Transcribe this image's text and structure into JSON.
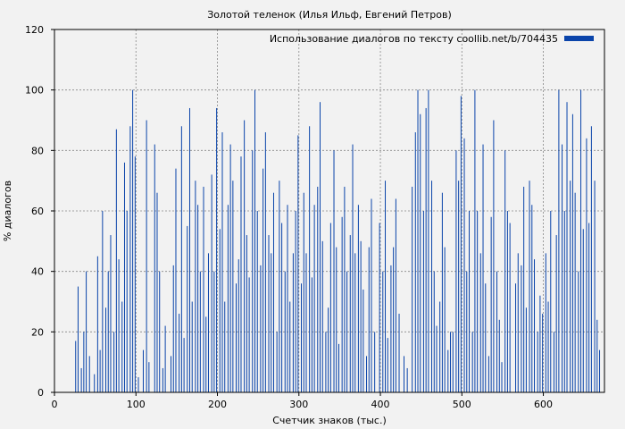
{
  "chart_data": {
    "type": "bar",
    "title": "Золотой теленок (Илья Ильф, Евгений Петров)",
    "xlabel": "Счетчик знаков (тыс.)",
    "ylabel": "% диалогов",
    "legend_label": "Использование диалогов по тексту coollib.net/b/704435",
    "legend_position": "top-right",
    "grid": true,
    "xlim": [
      0,
      675
    ],
    "ylim": [
      0,
      120
    ],
    "x_ticks": [
      0,
      100,
      200,
      300,
      400,
      500,
      600
    ],
    "y_ticks": [
      0,
      20,
      40,
      60,
      80,
      100,
      120
    ],
    "bar_color": "#0a44aa",
    "bar_width": 1,
    "x": [
      26,
      29,
      33,
      36,
      39,
      43,
      46,
      49,
      53,
      56,
      59,
      63,
      66,
      69,
      73,
      76,
      79,
      83,
      86,
      89,
      93,
      96,
      99,
      103,
      106,
      109,
      113,
      116,
      119,
      123,
      126,
      129,
      133,
      136,
      139,
      143,
      146,
      149,
      153,
      156,
      159,
      163,
      166,
      169,
      173,
      176,
      179,
      183,
      186,
      189,
      193,
      196,
      199,
      203,
      206,
      209,
      213,
      216,
      219,
      223,
      226,
      229,
      233,
      236,
      239,
      243,
      246,
      249,
      253,
      256,
      259,
      263,
      266,
      269,
      273,
      276,
      279,
      283,
      286,
      289,
      293,
      296,
      299,
      303,
      306,
      309,
      313,
      316,
      319,
      323,
      326,
      329,
      333,
      336,
      339,
      343,
      346,
      349,
      353,
      356,
      359,
      363,
      366,
      369,
      373,
      376,
      379,
      383,
      386,
      389,
      393,
      396,
      399,
      403,
      406,
      409,
      413,
      416,
      419,
      423,
      426,
      429,
      433,
      436,
      439,
      443,
      446,
      449,
      453,
      456,
      459,
      463,
      466,
      469,
      473,
      476,
      479,
      483,
      486,
      489,
      493,
      496,
      499,
      503,
      506,
      509,
      513,
      516,
      519,
      523,
      526,
      529,
      533,
      536,
      539,
      543,
      546,
      549,
      553,
      556,
      559,
      563,
      566,
      569,
      573,
      576,
      579,
      583,
      586,
      589,
      593,
      596,
      599,
      603,
      606,
      609,
      613,
      616,
      619,
      623,
      626,
      629,
      633,
      636,
      639,
      643,
      646,
      649,
      653,
      656,
      659,
      663,
      666,
      669
    ],
    "values": [
      17,
      35,
      8,
      20,
      40,
      12,
      0,
      6,
      45,
      14,
      60,
      28,
      40,
      52,
      20,
      87,
      44,
      30,
      76,
      60,
      88,
      100,
      78,
      5,
      0,
      14,
      90,
      10,
      0,
      82,
      66,
      40,
      8,
      22,
      0,
      12,
      42,
      74,
      26,
      88,
      18,
      55,
      94,
      30,
      70,
      62,
      40,
      68,
      25,
      46,
      72,
      40,
      94,
      54,
      86,
      30,
      62,
      82,
      70,
      36,
      44,
      78,
      90,
      52,
      38,
      80,
      100,
      60,
      42,
      74,
      86,
      52,
      46,
      66,
      20,
      70,
      56,
      40,
      62,
      30,
      46,
      60,
      85,
      36,
      66,
      46,
      88,
      38,
      62,
      68,
      96,
      50,
      20,
      28,
      56,
      80,
      48,
      16,
      58,
      68,
      40,
      52,
      82,
      46,
      62,
      50,
      34,
      12,
      48,
      64,
      20,
      0,
      56,
      40,
      70,
      18,
      42,
      48,
      64,
      26,
      0,
      12,
      8,
      0,
      68,
      86,
      100,
      92,
      60,
      94,
      100,
      70,
      40,
      22,
      30,
      66,
      48,
      14,
      20,
      20,
      80,
      70,
      98,
      84,
      40,
      60,
      20,
      100,
      60,
      46,
      82,
      36,
      12,
      58,
      90,
      40,
      24,
      10,
      80,
      60,
      56,
      0,
      36,
      46,
      42,
      68,
      28,
      70,
      62,
      44,
      20,
      32,
      26,
      46,
      30,
      60,
      20,
      52,
      100,
      82,
      60,
      96,
      70,
      92,
      66,
      40,
      100,
      54,
      84,
      56,
      88,
      70,
      24,
      14
    ]
  }
}
